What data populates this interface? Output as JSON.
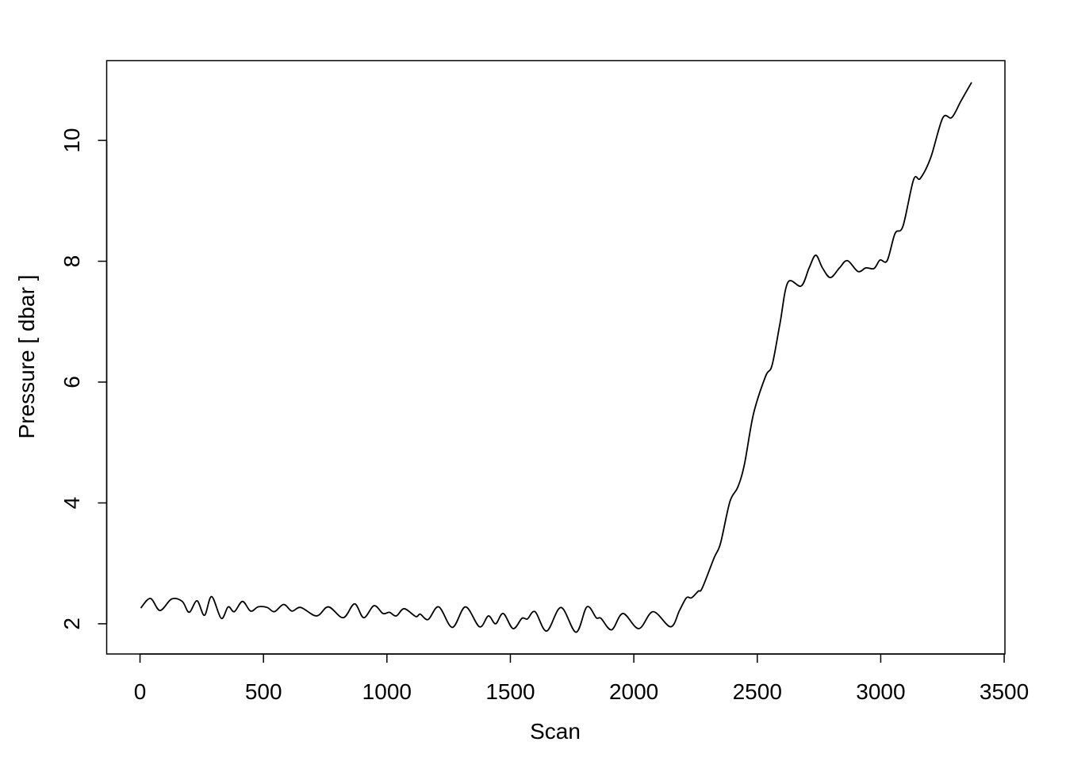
{
  "chart_data": {
    "type": "line",
    "title": "",
    "xlabel": "Scan",
    "ylabel": "Pressure [ dbar ]",
    "xlim": [
      -135,
      3503
    ],
    "ylim": [
      1.5,
      11.32
    ],
    "xticks": [
      0,
      500,
      1000,
      1500,
      2000,
      2500,
      3000,
      3500
    ],
    "xtick_labels": [
      "0",
      "500",
      "1000",
      "1500",
      "2000",
      "2500",
      "3000",
      "3500"
    ],
    "yticks": [
      2,
      4,
      6,
      8,
      10
    ],
    "ytick_labels": [
      "2",
      "4",
      "6",
      "8",
      "10"
    ],
    "grid": false,
    "line_color": "#000000",
    "series": [
      {
        "x": [
          3,
          42,
          81,
          128,
          171,
          199,
          231,
          261,
          290,
          329,
          357,
          382,
          415,
          448,
          479,
          515,
          544,
          582,
          615,
          651,
          715,
          763,
          823,
          869,
          906,
          948,
          984,
          1010,
          1038,
          1070,
          1117,
          1135,
          1167,
          1210,
          1265,
          1318,
          1375,
          1411,
          1440,
          1471,
          1511,
          1547,
          1569,
          1600,
          1647,
          1705,
          1766,
          1810,
          1848,
          1867,
          1910,
          1956,
          2020,
          2078,
          2149,
          2185,
          2213,
          2234,
          2261,
          2277,
          2325,
          2351,
          2389,
          2421,
          2448,
          2485,
          2534,
          2560,
          2592,
          2624,
          2678,
          2710,
          2737,
          2764,
          2796,
          2833,
          2865,
          2908,
          2940,
          2973,
          2997,
          3026,
          3058,
          3090,
          3133,
          3160,
          3202,
          3251,
          3288,
          3326,
          3368
        ],
        "y": [
          2.26,
          2.42,
          2.22,
          2.41,
          2.37,
          2.19,
          2.38,
          2.14,
          2.45,
          2.09,
          2.28,
          2.2,
          2.37,
          2.21,
          2.28,
          2.27,
          2.2,
          2.32,
          2.21,
          2.27,
          2.13,
          2.28,
          2.1,
          2.33,
          2.1,
          2.3,
          2.17,
          2.19,
          2.13,
          2.25,
          2.12,
          2.16,
          2.07,
          2.28,
          1.94,
          2.28,
          1.95,
          2.13,
          2.0,
          2.17,
          1.92,
          2.09,
          2.08,
          2.2,
          1.88,
          2.27,
          1.86,
          2.28,
          2.1,
          2.09,
          1.9,
          2.17,
          1.92,
          2.2,
          1.95,
          2.22,
          2.43,
          2.43,
          2.54,
          2.59,
          3.09,
          3.33,
          4.02,
          4.26,
          4.64,
          5.48,
          6.1,
          6.28,
          6.97,
          7.65,
          7.59,
          7.89,
          8.1,
          7.89,
          7.73,
          7.89,
          8.01,
          7.83,
          7.89,
          7.88,
          8.02,
          8.01,
          8.46,
          8.58,
          9.35,
          9.37,
          9.71,
          10.37,
          10.38,
          10.66,
          10.96
        ]
      }
    ]
  }
}
